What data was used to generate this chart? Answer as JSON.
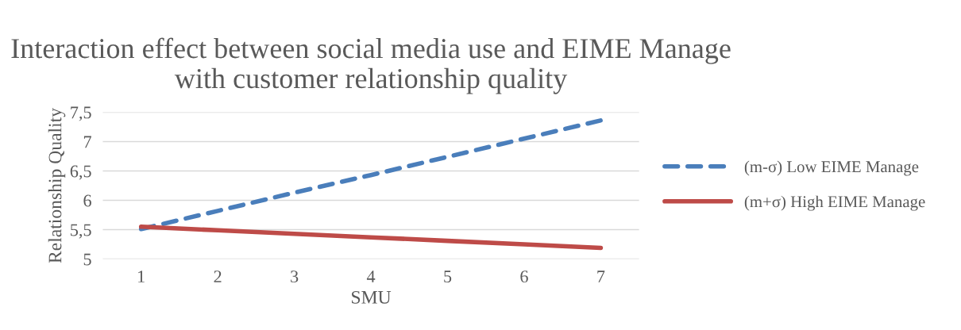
{
  "chart_data": {
    "type": "line",
    "title": "Interaction effect between social media use and EIME Manage\nwith customer relationship quality",
    "xlabel": "SMU",
    "ylabel": "Relationship Quality",
    "categories": [
      "1",
      "2",
      "3",
      "4",
      "5",
      "6",
      "7"
    ],
    "series": [
      {
        "name": "(m-σ) Low EIME Manage",
        "color": "#4a7ebb",
        "line_style": "dashed",
        "values": [
          5.51,
          5.82,
          6.13,
          6.43,
          6.74,
          7.05,
          7.36
        ]
      },
      {
        "name": "(m+σ) High EIME Manage",
        "color": "#be4b48",
        "line_style": "solid",
        "values": [
          5.55,
          5.49,
          5.43,
          5.37,
          5.31,
          5.25,
          5.19
        ]
      }
    ],
    "ylim": [
      5,
      7.5
    ],
    "yticks": [
      5,
      {
        "value": 5.5,
        "label": "5,5"
      },
      6,
      {
        "value": 6.5,
        "label": "6,5"
      },
      7,
      {
        "value": 7.5,
        "label": "7,5"
      }
    ],
    "grid": "y",
    "legend": "right",
    "marker": "none"
  }
}
